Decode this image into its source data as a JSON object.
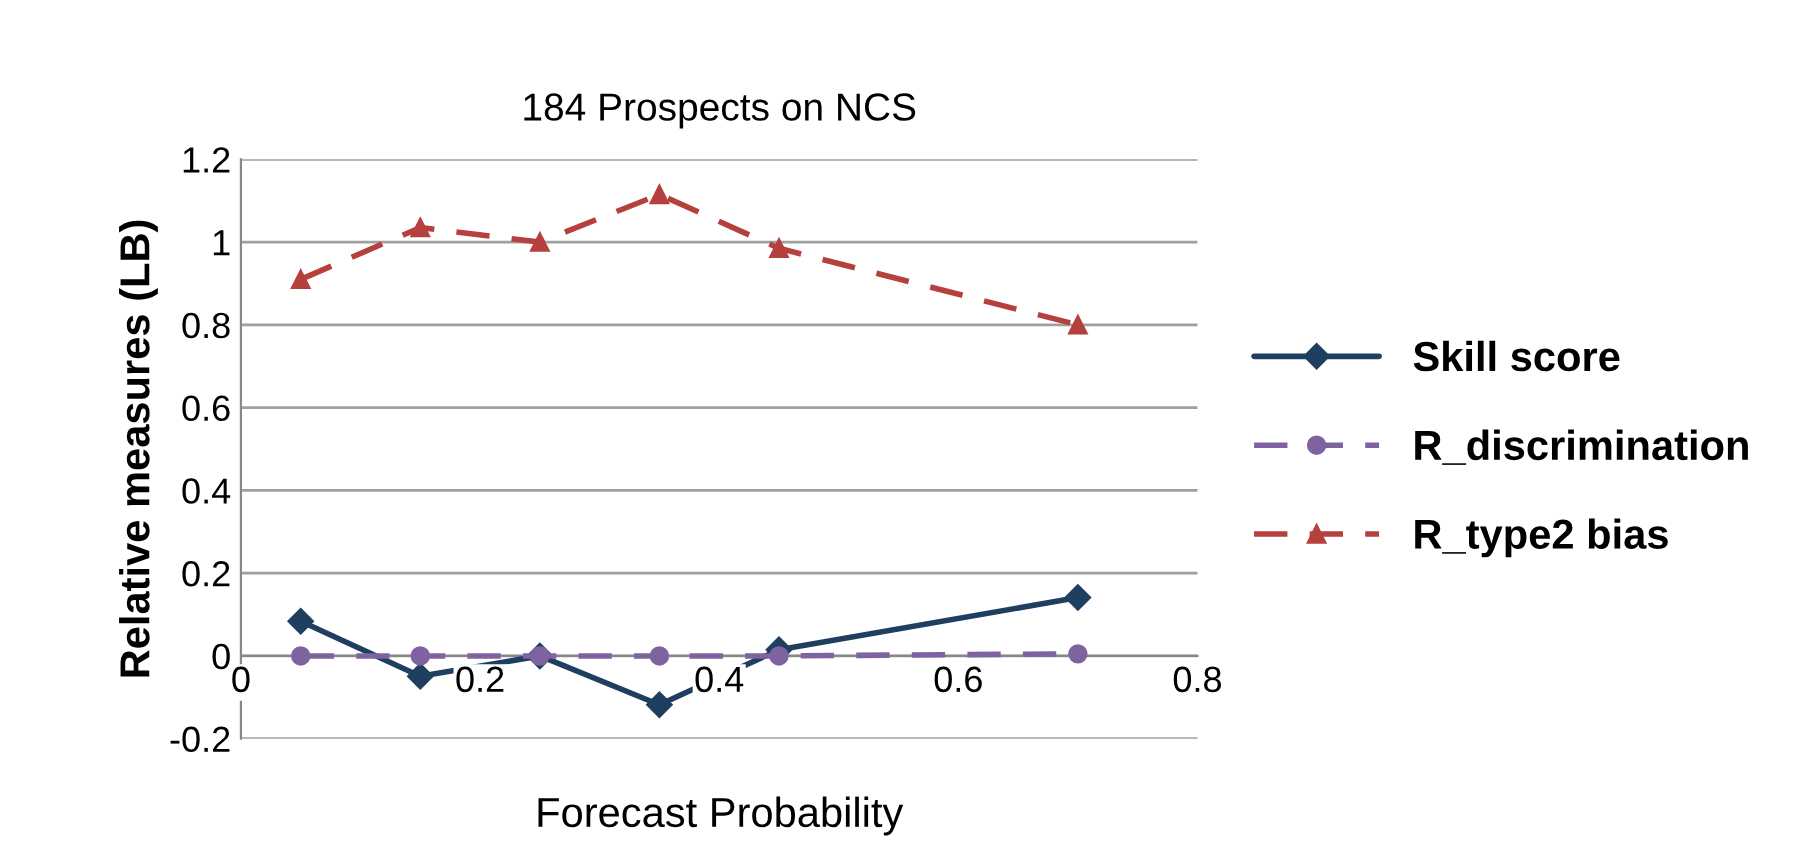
{
  "chart_data": {
    "type": "line",
    "title": "184 Prospects on NCS",
    "xlabel": "Forecast Probability",
    "ylabel": "Relative measures (LB)",
    "x": [
      0.05,
      0.15,
      0.25,
      0.35,
      0.45,
      0.7
    ],
    "series": [
      {
        "name": "Skill score",
        "color": "#1f3f60",
        "values": [
          0.084,
          -0.049,
          0.0,
          -0.118,
          0.015,
          0.141
        ],
        "marker": "diamond",
        "line_style": "solid"
      },
      {
        "name": "R_discrimination",
        "color": "#7f63a0",
        "values": [
          0.0,
          0.0,
          0.0,
          0.0,
          0.0,
          0.005
        ],
        "marker": "circle",
        "line_style": "dashed"
      },
      {
        "name": "R_type2 bias",
        "color": "#b5403d",
        "values": [
          0.91,
          1.035,
          1.0,
          1.115,
          0.985,
          0.8
        ],
        "marker": "triangle",
        "line_style": "dashed"
      }
    ],
    "xlim": [
      0,
      0.8
    ],
    "xticks": [
      0,
      0.2,
      0.4,
      0.6,
      0.8
    ],
    "ylim": [
      -0.2,
      1.2
    ],
    "yticks": [
      -0.2,
      0,
      0.2,
      0.4,
      0.6,
      0.8,
      1,
      1.2
    ],
    "grid": "y",
    "legend": "right"
  }
}
